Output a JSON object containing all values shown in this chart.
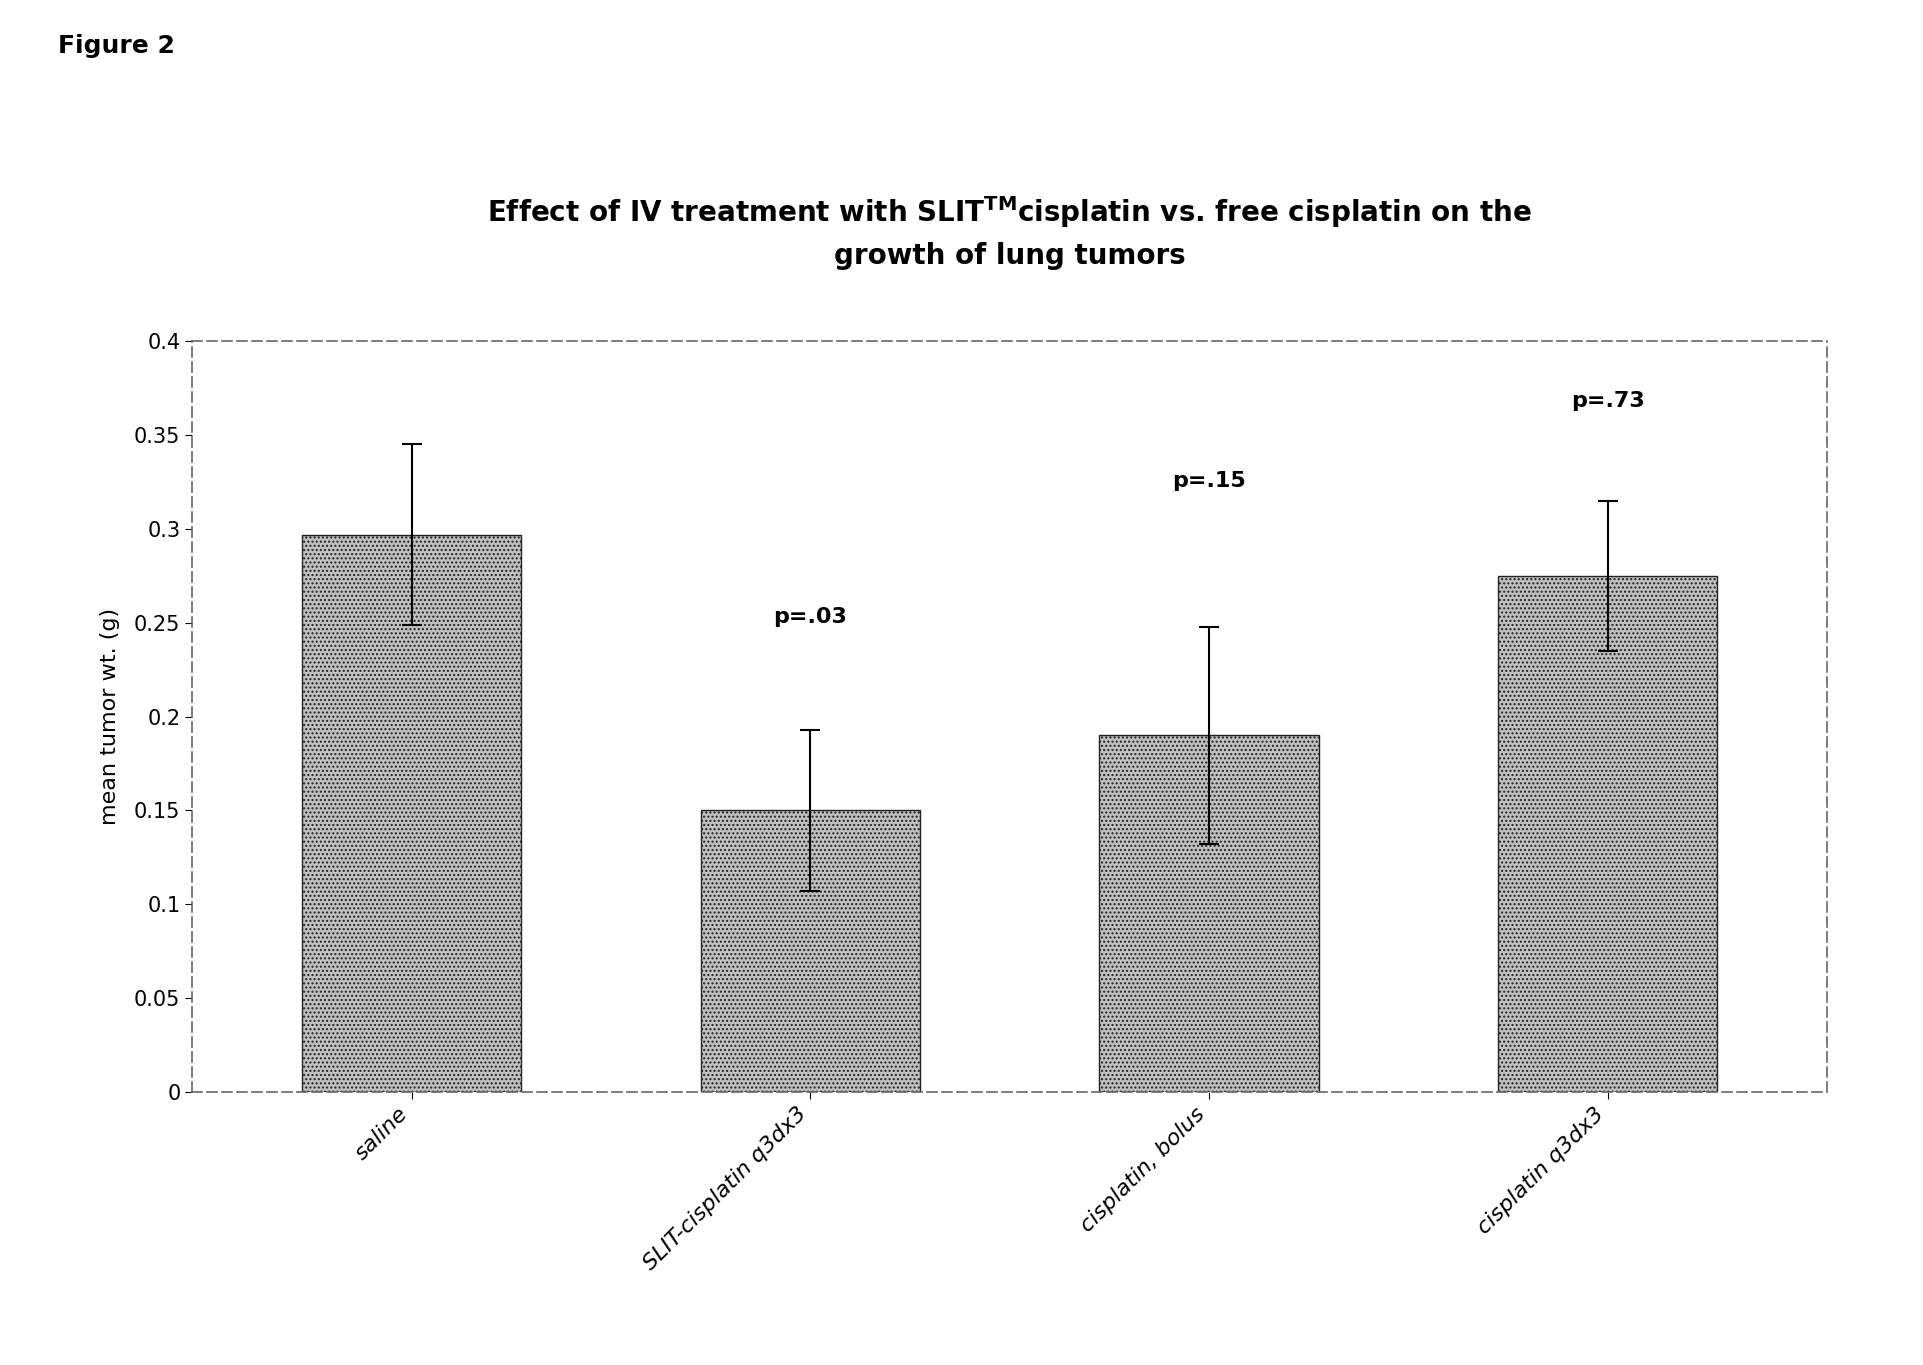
{
  "categories": [
    "saline",
    "SLIT-cisplatin q3dx3",
    "cisplatin, bolus",
    "cisplatin q3dx3"
  ],
  "values": [
    0.297,
    0.15,
    0.19,
    0.275
  ],
  "errors": [
    0.048,
    0.043,
    0.058,
    0.04
  ],
  "p_values": [
    null,
    "p=.03",
    "p=.15",
    "p=.73"
  ],
  "p_value_y_offset": [
    null,
    0.055,
    0.072,
    0.048
  ],
  "title_line1": "Effect of IV treatment with SLIT$^{\\mathregular{TM}}$cisplatin vs. free cisplatin on the",
  "title_line2": "growth of lung tumors",
  "ylabel": "mean tumor wt. (g)",
  "ylim": [
    0,
    0.4
  ],
  "yticks": [
    0,
    0.05,
    0.1,
    0.15,
    0.2,
    0.25,
    0.3,
    0.35,
    0.4
  ],
  "figure_label": "Figure 2",
  "bar_color": "#c0c0c0",
  "bar_hatch": "....",
  "bar_edgecolor": "#222222",
  "background_color": "#ffffff",
  "title_fontsize": 20,
  "label_fontsize": 16,
  "tick_fontsize": 15,
  "pval_fontsize": 16,
  "figure_label_fontsize": 18
}
